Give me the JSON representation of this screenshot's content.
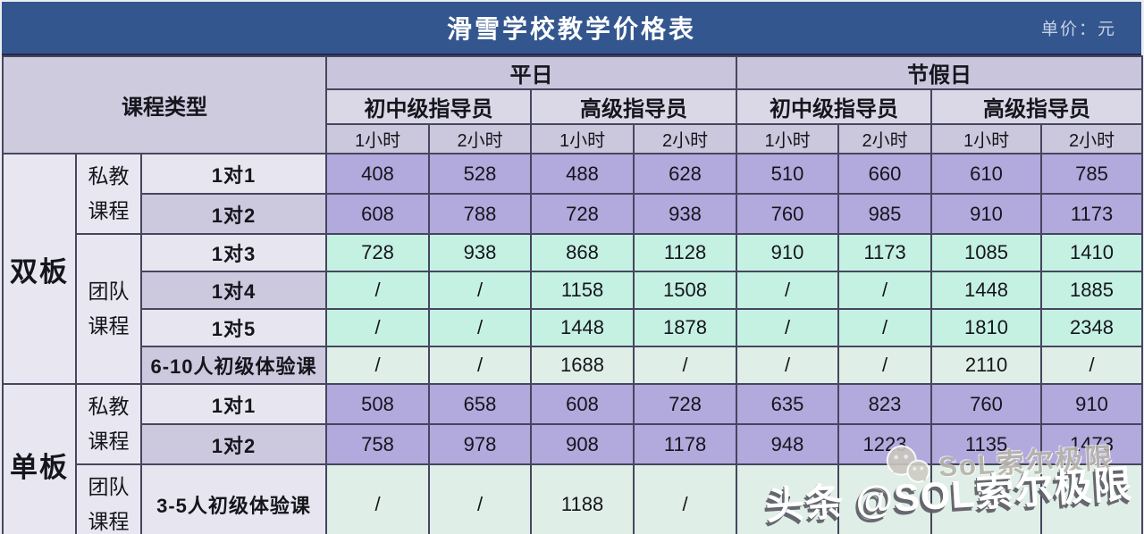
{
  "title": "滑雪学校教学价格表",
  "unit_note": "单价：元",
  "header": {
    "course_type_label": "课程类型",
    "day_groups": [
      "平日",
      "节假日"
    ],
    "instructor_labels": [
      "初中级指导员",
      "高级指导员",
      "初中级指导员",
      "高级指导员"
    ],
    "hour_labels": [
      "1小时",
      "2小时",
      "1小时",
      "2小时",
      "1小时",
      "2小时",
      "1小时",
      "2小时"
    ]
  },
  "table": {
    "sections": [
      {
        "board": "双板",
        "groups": [
          {
            "label_lines": [
              "私教",
              "课程"
            ],
            "rows": [
              {
                "name": "1对1",
                "tone": "purple",
                "name_tone": "light",
                "values": [
                  "408",
                  "528",
                  "488",
                  "628",
                  "510",
                  "660",
                  "610",
                  "785"
                ]
              },
              {
                "name": "1对2",
                "tone": "purple",
                "name_tone": "dark",
                "values": [
                  "608",
                  "788",
                  "728",
                  "938",
                  "760",
                  "985",
                  "910",
                  "1173"
                ]
              }
            ]
          },
          {
            "label_lines": [
              "团队",
              "课程"
            ],
            "rows": [
              {
                "name": "1对3",
                "tone": "mint",
                "name_tone": "light",
                "values": [
                  "728",
                  "938",
                  "868",
                  "1128",
                  "910",
                  "1173",
                  "1085",
                  "1410"
                ]
              },
              {
                "name": "1对4",
                "tone": "mint",
                "name_tone": "dark",
                "values": [
                  "/",
                  "/",
                  "1158",
                  "1508",
                  "/",
                  "/",
                  "1448",
                  "1885"
                ]
              },
              {
                "name": "1对5",
                "tone": "mint",
                "name_tone": "light",
                "values": [
                  "/",
                  "/",
                  "1448",
                  "1878",
                  "/",
                  "/",
                  "1810",
                  "2348"
                ]
              },
              {
                "name": "6-10人初级体验课",
                "tone": "sage",
                "name_tone": "dark",
                "values": [
                  "/",
                  "/",
                  "1688",
                  "/",
                  "/",
                  "/",
                  "2110",
                  "/"
                ]
              }
            ]
          }
        ]
      },
      {
        "board": "单板",
        "groups": [
          {
            "label_lines": [
              "私教",
              "课程"
            ],
            "rows": [
              {
                "name": "1对1",
                "tone": "purple",
                "name_tone": "light",
                "values": [
                  "508",
                  "658",
                  "608",
                  "728",
                  "635",
                  "823",
                  "760",
                  "910"
                ]
              },
              {
                "name": "1对2",
                "tone": "purple",
                "name_tone": "dark",
                "values": [
                  "758",
                  "978",
                  "908",
                  "1178",
                  "948",
                  "1223",
                  "1135",
                  "1473"
                ]
              }
            ]
          },
          {
            "label_lines": [
              "团队",
              "课程"
            ],
            "rows": [
              {
                "name": "3-5人初级体验课",
                "tone": "sage",
                "name_tone": "light",
                "values": [
                  "/",
                  "/",
                  "1188",
                  "/",
                  "/",
                  "",
                  "",
                  ""
                ]
              }
            ]
          }
        ]
      }
    ]
  },
  "watermark": {
    "small_icon": "wechat-icon",
    "small_text": "SoL索尔极限",
    "large_text": "头条 @SOL索尔极限"
  },
  "colors": {
    "title_bar": "#33568f",
    "title_text": "#ffffff",
    "unit_note_text": "#c6d0e6",
    "header_day": "#c8c5dc",
    "header_instructor": "#dad8e7",
    "header_hour": "#cbc8dd",
    "cell_purple": "#b2a9dd",
    "cell_mint": "#c5f1e3",
    "cell_sage": "#dfeee6",
    "label_light": "#e7e6f0",
    "label_dark": "#ccc9de",
    "grid_border": "#46465e"
  }
}
